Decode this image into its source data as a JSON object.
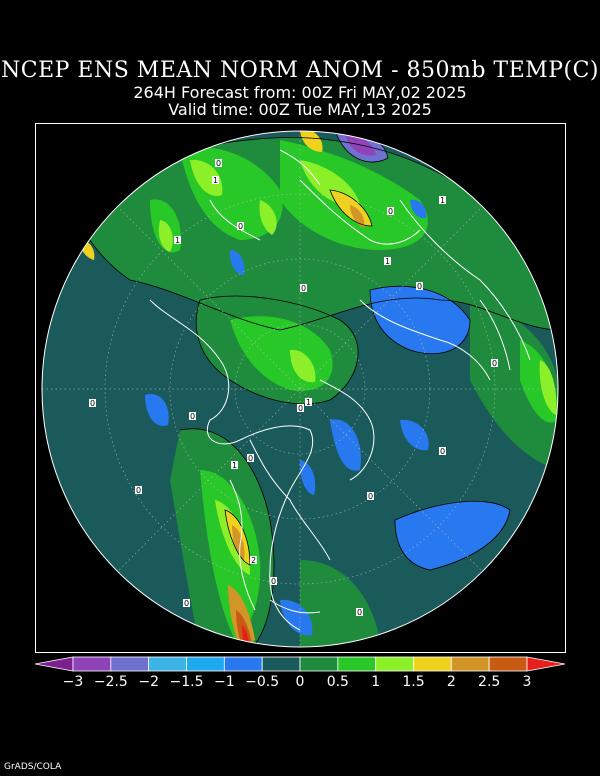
{
  "header": {
    "title": "NCEP ENS MEAN NORM ANOM - 850mb TEMP(C)",
    "forecast": "264H Forecast from: 00Z Fri MAY,02 2025",
    "valid": "Valid time: 00Z Tue MAY,13 2025"
  },
  "colorbar": {
    "labels": [
      "-3",
      "-2.5",
      "-2",
      "-1.5",
      "-1",
      "-0.5",
      "0",
      "0.5",
      "1",
      "1.5",
      "2",
      "2.5",
      "3"
    ],
    "colors": [
      "#7d1f8f",
      "#8e44b8",
      "#7070d0",
      "#3cb4e6",
      "#1eaaf0",
      "#2878f0",
      "#1a5a5a",
      "#1e8c3c",
      "#28c828",
      "#8cf028",
      "#f0d21e",
      "#d29628",
      "#c85a14",
      "#e61e1e"
    ]
  },
  "contour_labels": [
    "0",
    "1",
    "1",
    "0",
    "0",
    "0",
    "1",
    "1",
    "0",
    "0",
    "0",
    "1",
    "0",
    "0",
    "0",
    "0",
    "0",
    "1",
    "0",
    "0",
    "2",
    "0",
    "0"
  ],
  "credit": "GrADS/COLA"
}
